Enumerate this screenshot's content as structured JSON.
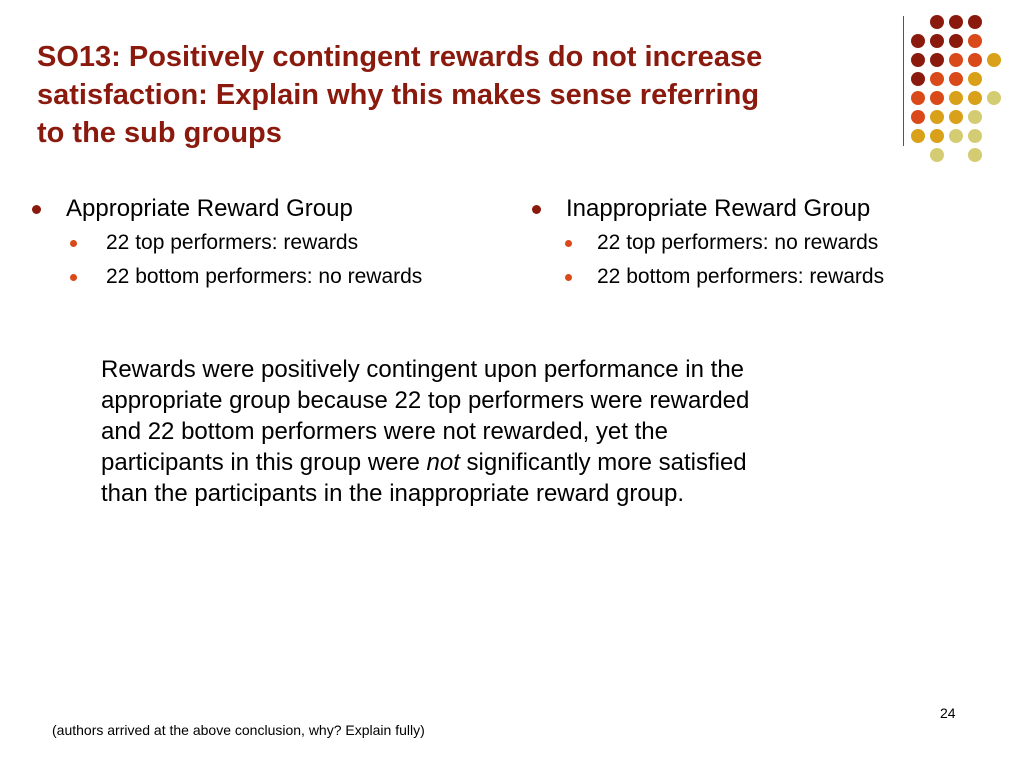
{
  "slide": {
    "title_lines": [
      "SO13: Positively contingent rewards do not increase",
      "satisfaction: Explain why this makes sense referring",
      "to the sub groups"
    ],
    "left_column": {
      "heading": "Appropriate Reward Group",
      "items": [
        "22 top performers: rewards",
        "22 bottom performers: no rewards"
      ]
    },
    "right_column": {
      "heading": "Inappropriate Reward Group",
      "items": [
        "22 top performers: no rewards",
        "22 bottom performers: rewards"
      ]
    },
    "paragraph": {
      "line1": "Rewards were positively contingent upon performance in the",
      "line2": "appropriate group because 22 top performers were rewarded",
      "line3": "and 22 bottom performers were not rewarded, yet the",
      "line4_before": "participants in this group were ",
      "line4_emphasis": "not",
      "line4_after": " significantly more satisfied",
      "line5": "than the participants in the inappropriate reward group."
    },
    "page_number": "24",
    "footnote": "(authors arrived at the above conclusion, why? Explain fully)"
  },
  "theme": {
    "title_color": "#8B1A0E",
    "dot_colors": [
      "#8B1A0E",
      "#D9491A",
      "#D9A019",
      "#D4CC72"
    ]
  }
}
